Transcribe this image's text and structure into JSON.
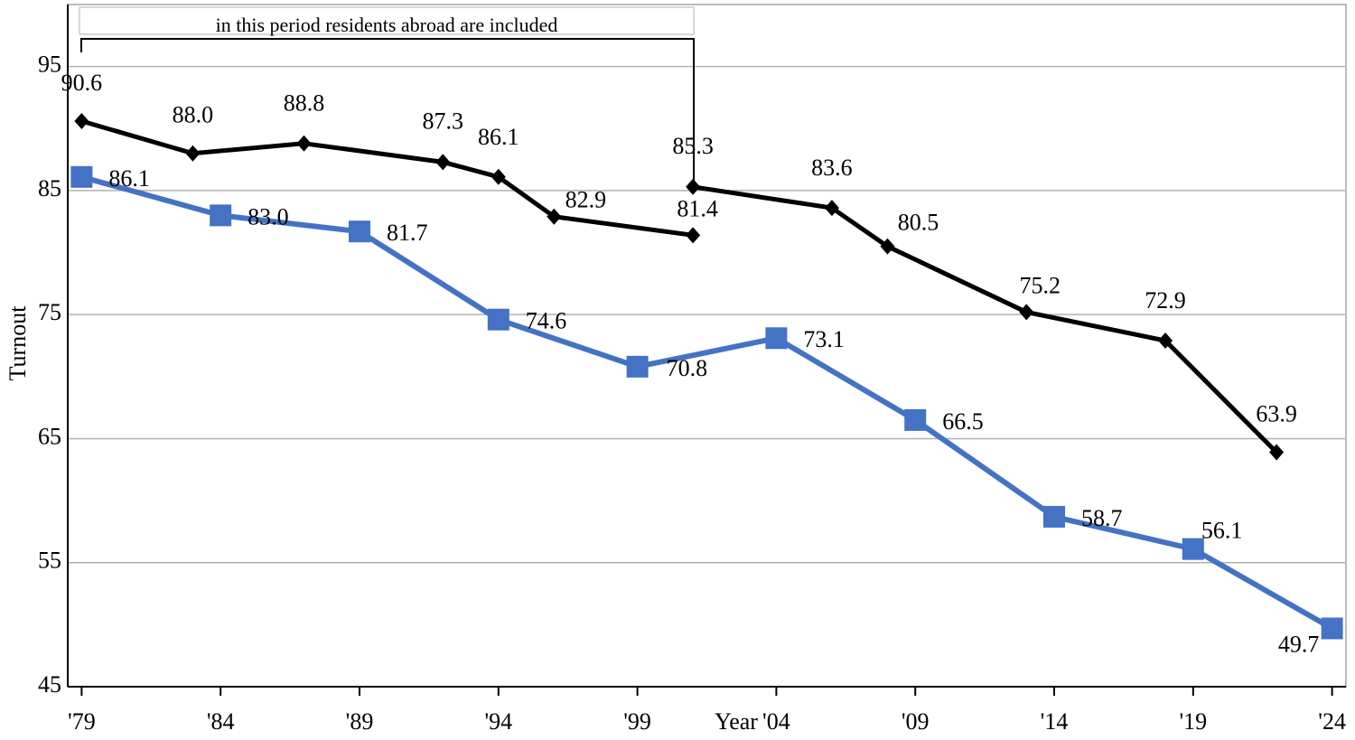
{
  "chart_data": {
    "type": "line",
    "annotation": "in this period residents abroad are included",
    "xlabel": "Year",
    "ylabel": "Turnout",
    "xlim": [
      1978.5,
      2024.5
    ],
    "xticks": [
      {
        "value": 1979,
        "label": "'79"
      },
      {
        "value": 1984,
        "label": "'84"
      },
      {
        "value": 1989,
        "label": "'89"
      },
      {
        "value": 1994,
        "label": "'94"
      },
      {
        "value": 1999,
        "label": "'99"
      },
      {
        "value": 2004,
        "label": "'04"
      },
      {
        "value": 2009,
        "label": "'09"
      },
      {
        "value": 2014,
        "label": "'14"
      },
      {
        "value": 2019,
        "label": "'19"
      },
      {
        "value": 2024,
        "label": "'24"
      }
    ],
    "ylim": [
      45,
      100
    ],
    "yticks": [
      45,
      55,
      65,
      75,
      85,
      95
    ],
    "grid": true,
    "series": [
      {
        "color": "#000000",
        "marker": "diamond",
        "x": [
          1979,
          1983,
          1987,
          1992,
          1994,
          1996,
          2001,
          2001,
          2001,
          2006,
          2008,
          2013,
          2018,
          2022
        ],
        "values": [
          90.6,
          88,
          88.8,
          87.3,
          86.1,
          82.9,
          81.4,
          null,
          85.3,
          83.6,
          80.5,
          75.2,
          72.9,
          63.9
        ],
        "value_labels": [
          "90.6",
          "88.0",
          "88.8",
          "87.3",
          "86.1",
          "82.9",
          "81.4",
          null,
          "85.3",
          "83.6",
          "80.5",
          "75.2",
          "72.9",
          "63.9"
        ]
      },
      {
        "color": "#4472c4",
        "marker": "square",
        "x": [
          1979,
          1984,
          1989,
          1994,
          1999,
          2004,
          2009,
          2014,
          2019,
          2024
        ],
        "values": [
          86.1,
          83,
          81.7,
          74.6,
          70.8,
          73.1,
          66.5,
          58.7,
          56.1,
          49.7
        ],
        "value_labels": [
          "86.1",
          "83.0",
          "81.7",
          "74.6",
          "70.8",
          "73.1",
          "66.5",
          "58.7",
          "56.1",
          "49.7"
        ]
      }
    ]
  }
}
